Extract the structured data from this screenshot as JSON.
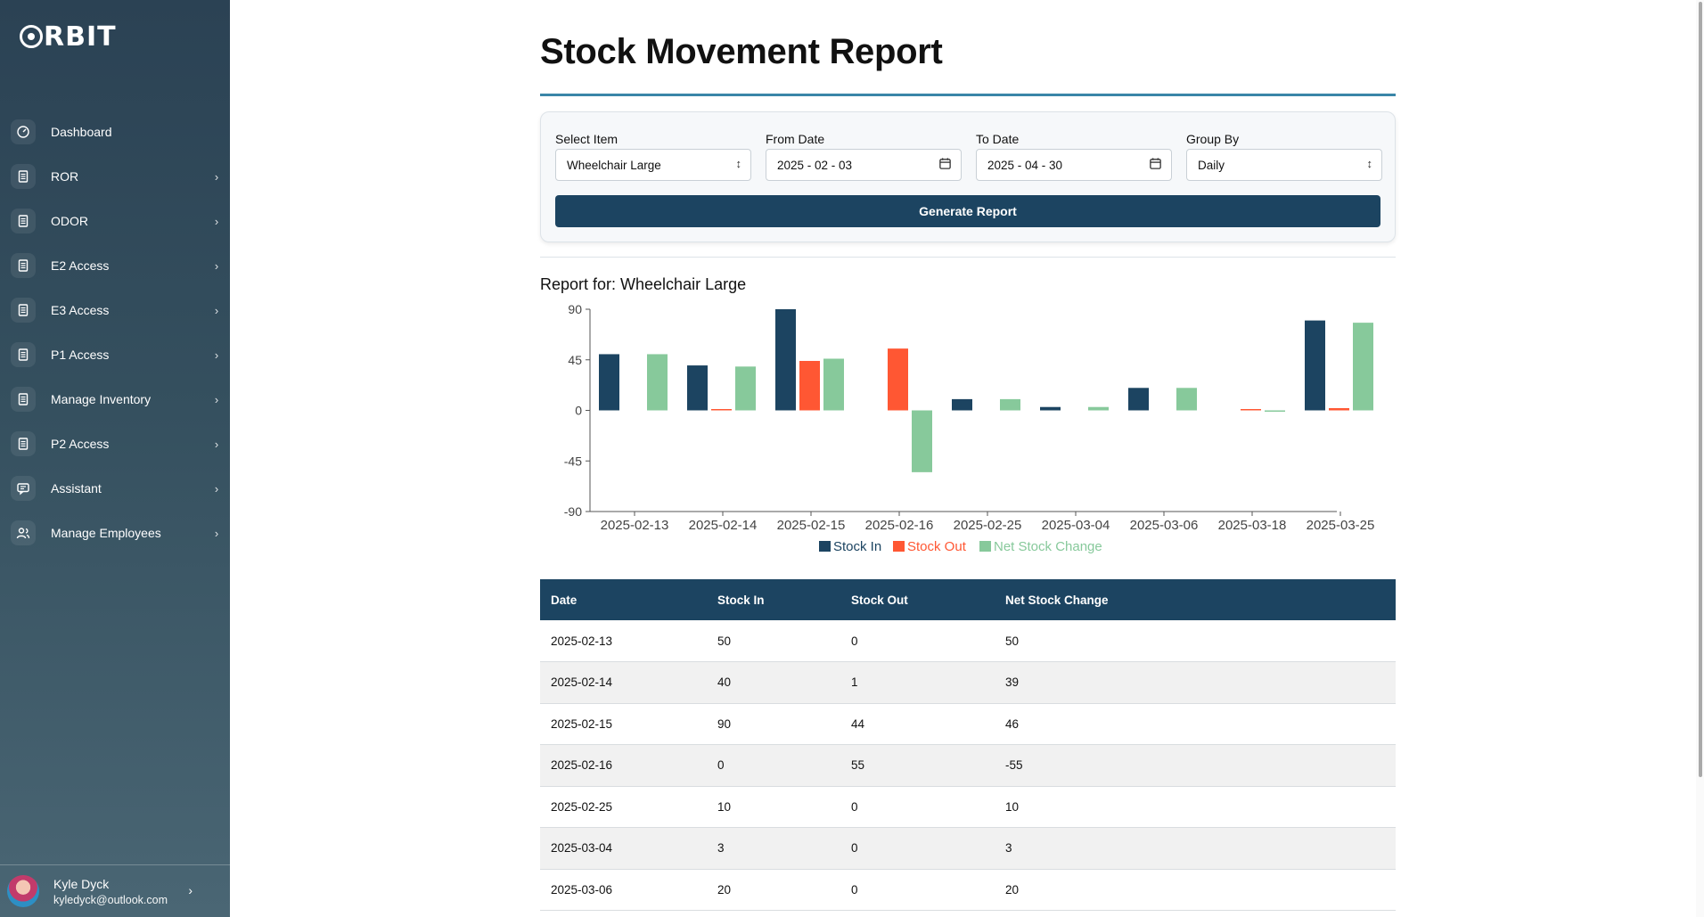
{
  "brand": {
    "name": "RBIT"
  },
  "sidebar": {
    "items": [
      {
        "label": "Dashboard",
        "icon": "dashboard-icon",
        "has_chevron": false
      },
      {
        "label": "ROR",
        "icon": "document-icon",
        "has_chevron": true
      },
      {
        "label": "ODOR",
        "icon": "document-icon",
        "has_chevron": true
      },
      {
        "label": "E2 Access",
        "icon": "document-icon",
        "has_chevron": true
      },
      {
        "label": "E3 Access",
        "icon": "document-icon",
        "has_chevron": true
      },
      {
        "label": "P1 Access",
        "icon": "document-icon",
        "has_chevron": true
      },
      {
        "label": "Manage Inventory",
        "icon": "document-icon",
        "has_chevron": true
      },
      {
        "label": "P2 Access",
        "icon": "document-icon",
        "has_chevron": true
      },
      {
        "label": "Assistant",
        "icon": "chat-icon",
        "has_chevron": true
      },
      {
        "label": "Manage Employees",
        "icon": "users-icon",
        "has_chevron": true
      }
    ]
  },
  "profile": {
    "name": "Kyle Dyck",
    "email": "kyledyck@outlook.com"
  },
  "page": {
    "title": "Stock Movement Report"
  },
  "filters": {
    "item_label": "Select Item",
    "item_value": "Wheelchair Large",
    "from_label": "From Date",
    "from_value": "2025 - 02 - 03",
    "to_label": "To Date",
    "to_value": "2025 - 04 - 30",
    "group_label": "Group By",
    "group_value": "Daily",
    "generate_label": "Generate Report"
  },
  "report": {
    "title": "Report for: Wheelchair Large"
  },
  "colors": {
    "stock_in": "#1c4461",
    "stock_out": "#ff5733",
    "net": "#87c99b",
    "accent": "#3a86a8"
  },
  "chart_data": {
    "type": "bar",
    "categories": [
      "2025-02-13",
      "2025-02-14",
      "2025-02-15",
      "2025-02-16",
      "2025-02-25",
      "2025-03-04",
      "2025-03-06",
      "2025-03-18",
      "2025-03-25"
    ],
    "series": [
      {
        "name": "Stock In",
        "values": [
          50,
          40,
          90,
          0,
          10,
          3,
          20,
          0,
          80
        ]
      },
      {
        "name": "Stock Out",
        "values": [
          0,
          1,
          44,
          55,
          0,
          0,
          0,
          1,
          2
        ]
      },
      {
        "name": "Net Stock Change",
        "values": [
          50,
          39,
          46,
          -55,
          10,
          3,
          20,
          -1,
          78
        ]
      }
    ],
    "yticks": [
      90,
      45,
      0,
      -45,
      -90
    ],
    "ylim": [
      -90,
      90
    ],
    "legend_position": "bottom"
  },
  "table": {
    "headers": [
      "Date",
      "Stock In",
      "Stock Out",
      "Net Stock Change"
    ],
    "rows": [
      [
        "2025-02-13",
        "50",
        "0",
        "50"
      ],
      [
        "2025-02-14",
        "40",
        "1",
        "39"
      ],
      [
        "2025-02-15",
        "90",
        "44",
        "46"
      ],
      [
        "2025-02-16",
        "0",
        "55",
        "-55"
      ],
      [
        "2025-02-25",
        "10",
        "0",
        "10"
      ],
      [
        "2025-03-04",
        "3",
        "0",
        "3"
      ],
      [
        "2025-03-06",
        "20",
        "0",
        "20"
      ]
    ]
  }
}
